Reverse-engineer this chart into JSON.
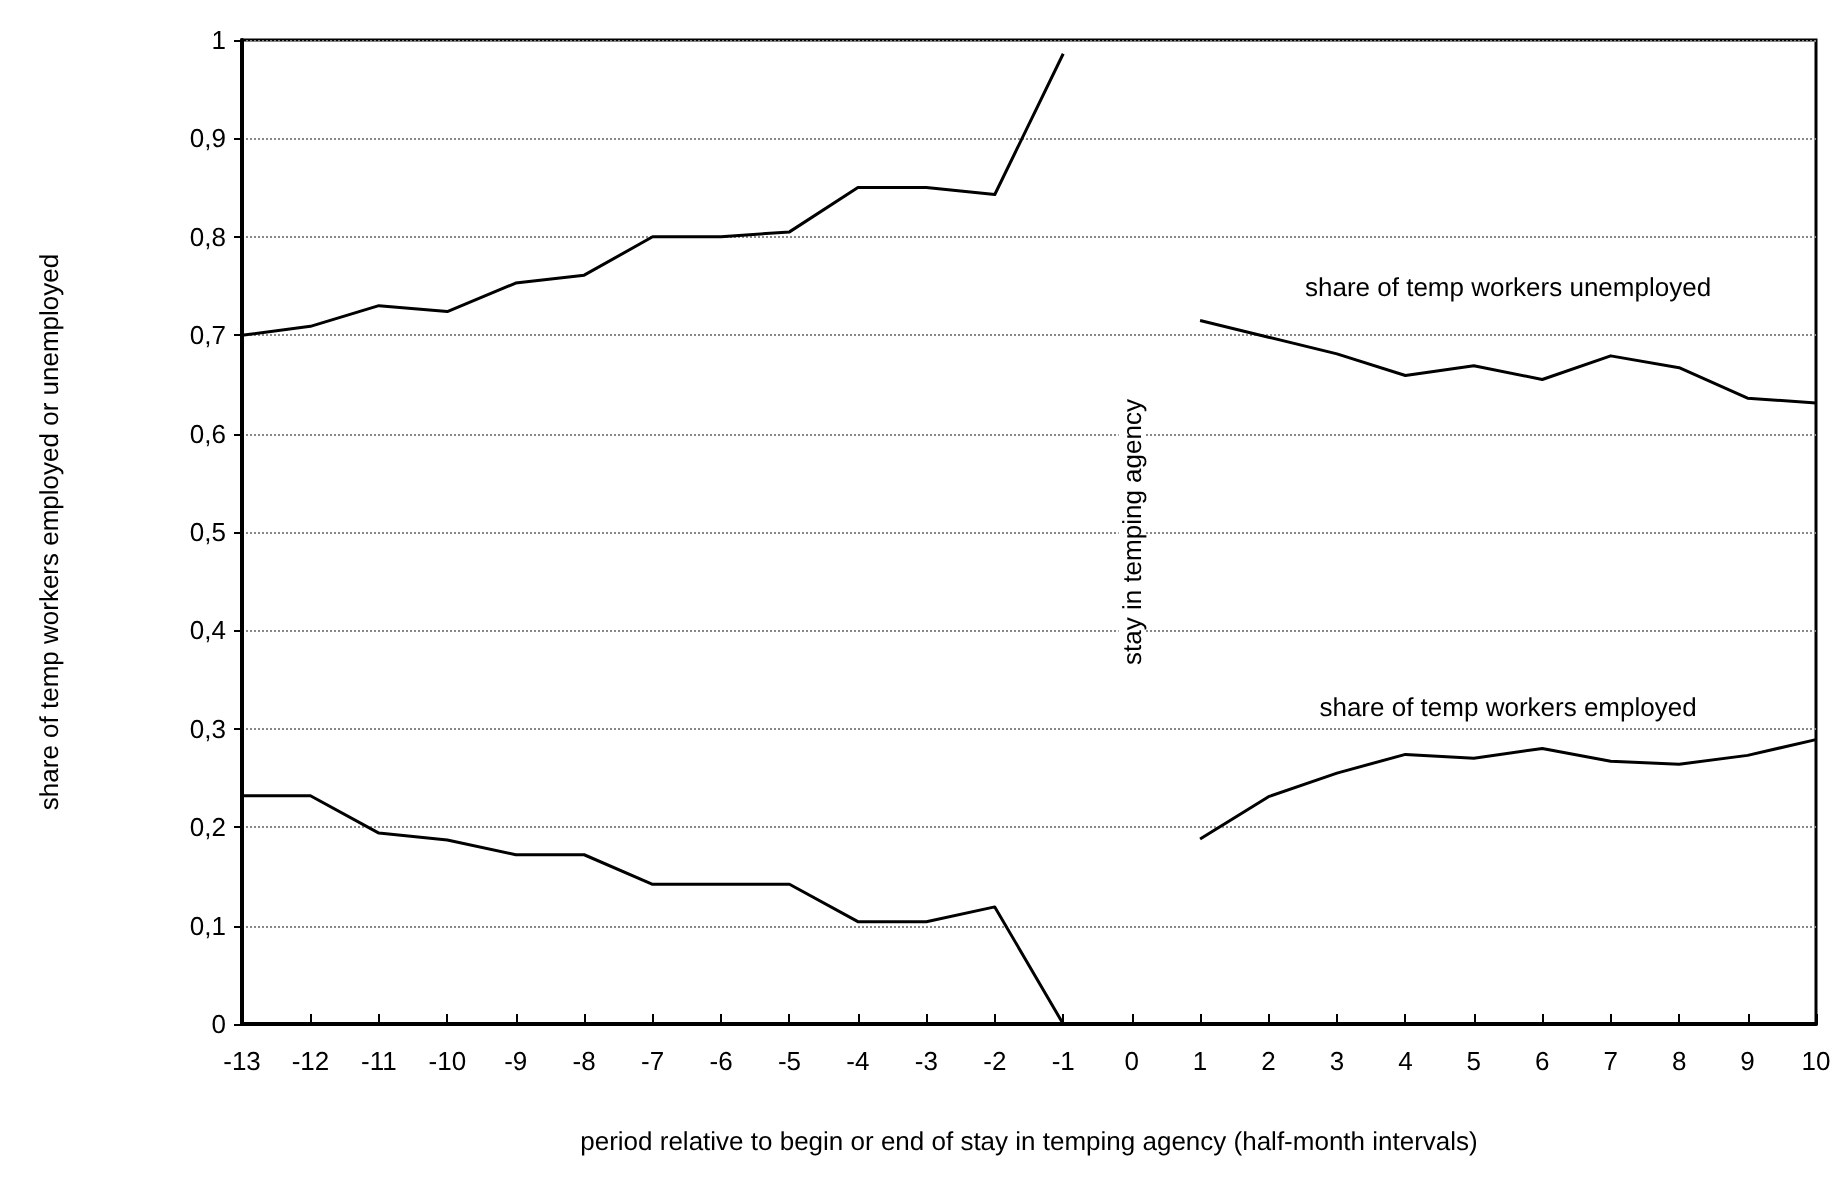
{
  "chart_data": {
    "type": "line",
    "xlabel": "period relative to begin or end of stay in temping agency (half-month intervals)",
    "ylabel": "share of temp workers employed or unemployed",
    "x": [
      -13,
      -12,
      -11,
      -10,
      -9,
      -8,
      -7,
      -6,
      -5,
      -4,
      -3,
      -2,
      -1,
      0,
      1,
      2,
      3,
      4,
      5,
      6,
      7,
      8,
      9,
      10
    ],
    "series": [
      {
        "name": "share of temp workers unemployed",
        "color": "#000000",
        "values": [
          0.7,
          0.709,
          0.73,
          0.724,
          0.753,
          0.761,
          0.8,
          0.8,
          0.805,
          0.85,
          0.85,
          0.843,
          0.986,
          null,
          0.715,
          0.698,
          0.681,
          0.659,
          0.669,
          0.655,
          0.679,
          0.667,
          0.636,
          0.631
        ]
      },
      {
        "name": "share of temp workers employed",
        "color": "#000000",
        "values": [
          0.232,
          0.232,
          0.194,
          0.187,
          0.172,
          0.172,
          0.142,
          0.142,
          0.142,
          0.104,
          0.104,
          0.119,
          0,
          null,
          0.188,
          0.231,
          0.255,
          0.274,
          0.27,
          0.28,
          0.267,
          0.264,
          0.273,
          0.289
        ]
      }
    ],
    "annotations": [
      "stay in temping agency"
    ],
    "xlim": [
      -13,
      10
    ],
    "xticks": [
      -13,
      -12,
      -11,
      -10,
      -9,
      -8,
      -7,
      -6,
      -5,
      -4,
      -3,
      -2,
      -1,
      0,
      1,
      2,
      3,
      4,
      5,
      6,
      7,
      8,
      9,
      10
    ],
    "ylim": [
      0,
      1
    ],
    "yticks": [
      0,
      {
        "value": 0.1,
        "label": "0,1"
      },
      {
        "value": 0.2,
        "label": "0,2"
      },
      {
        "value": 0.3,
        "label": "0,3"
      },
      {
        "value": 0.4,
        "label": "0,4"
      },
      {
        "value": 0.5,
        "label": "0,5"
      },
      {
        "value": 0.6,
        "label": "0,6"
      },
      {
        "value": 0.7,
        "label": "0,7"
      },
      {
        "value": 0.8,
        "label": "0,8"
      },
      {
        "value": 0.9,
        "label": "0,9"
      },
      1
    ],
    "grid": "y",
    "legend": false,
    "marker": "none",
    "line_style": "solid"
  }
}
